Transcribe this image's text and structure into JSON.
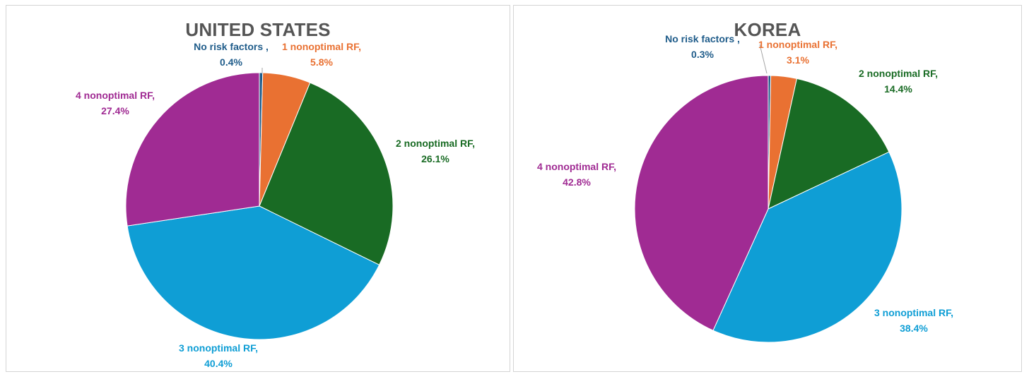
{
  "chart_data": [
    {
      "type": "pie",
      "title": "UNITED STATES",
      "slices": [
        {
          "label": "No risk factors ,",
          "value": 0.4,
          "value_text": "0.4%",
          "color": "#1f5c8a"
        },
        {
          "label": "1 nonoptimal RF,",
          "value": 5.8,
          "value_text": "5.8%",
          "color": "#e97132"
        },
        {
          "label": "2 nonoptimal RF,",
          "value": 26.1,
          "value_text": "26.1%",
          "color": "#196b24"
        },
        {
          "label": "3 nonoptimal RF,",
          "value": 40.4,
          "value_text": "40.4%",
          "color": "#0f9ed5"
        },
        {
          "label": "4 nonoptimal RF,",
          "value": 27.4,
          "value_text": "27.4%",
          "color": "#a02b93"
        }
      ],
      "label_colors": [
        "#1f5c8a",
        "#e97132",
        "#196b24",
        "#0f9ed5",
        "#a02b93"
      ]
    },
    {
      "type": "pie",
      "title": "KOREA",
      "slices": [
        {
          "label": "No risk factors ,",
          "value": 0.3,
          "value_text": "0.3%",
          "color": "#1f5c8a"
        },
        {
          "label": "1 nonoptimal RF,",
          "value": 3.1,
          "value_text": "3.1%",
          "color": "#e97132"
        },
        {
          "label": "2 nonoptimal RF,",
          "value": 14.4,
          "value_text": "14.4%",
          "color": "#196b24"
        },
        {
          "label": "3 nonoptimal RF,",
          "value": 38.4,
          "value_text": "38.4%",
          "color": "#0f9ed5"
        },
        {
          "label": "4 nonoptimal RF,",
          "value": 42.8,
          "value_text": "42.8%",
          "color": "#a02b93"
        }
      ],
      "label_colors": [
        "#1f5c8a",
        "#e97132",
        "#196b24",
        "#0f9ed5",
        "#a02b93"
      ]
    }
  ]
}
